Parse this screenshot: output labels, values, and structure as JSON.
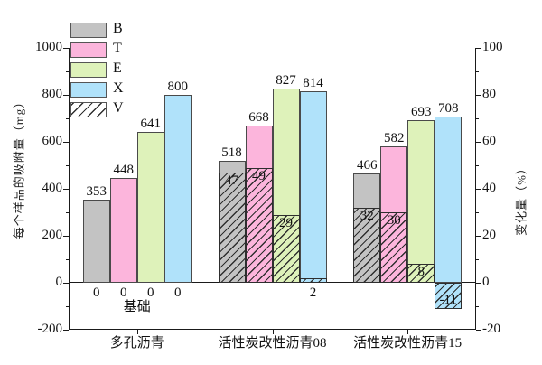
{
  "chart_data": {
    "type": "bar",
    "title": "",
    "categories": [
      "多孔沥青",
      "活性炭改性沥青08",
      "活性炭改性沥青15"
    ],
    "series": [
      {
        "name": "B",
        "color": "#c3c3c3",
        "values": [
          353,
          518,
          466
        ]
      },
      {
        "name": "T",
        "color": "#fcb5dc",
        "values": [
          448,
          668,
          582
        ]
      },
      {
        "name": "E",
        "color": "#def2ba",
        "values": [
          641,
          827,
          693
        ]
      },
      {
        "name": "X",
        "color": "#b0e2fa",
        "values": [
          800,
          814,
          708
        ]
      }
    ],
    "overlay": {
      "name": "V",
      "axis": "right",
      "pattern": "diagonal-hatch",
      "values": [
        [
          0,
          0,
          0,
          0
        ],
        [
          47,
          49,
          29,
          2
        ],
        [
          32,
          30,
          8,
          -11
        ]
      ]
    },
    "left_axis": {
      "label": "每个样品的吸附量（mg）",
      "min": -200,
      "max": 1000,
      "major_step": 200,
      "minor_step": 100
    },
    "right_axis": {
      "label": "变化量（%）",
      "min": -20,
      "max": 100,
      "major_step": 20,
      "minor_step": 10
    },
    "legend": {
      "position": "top-left-inside",
      "entries": [
        "B",
        "T",
        "E",
        "X",
        "V"
      ]
    },
    "annotations": {
      "baseline_label": "基础"
    },
    "grid": false
  }
}
